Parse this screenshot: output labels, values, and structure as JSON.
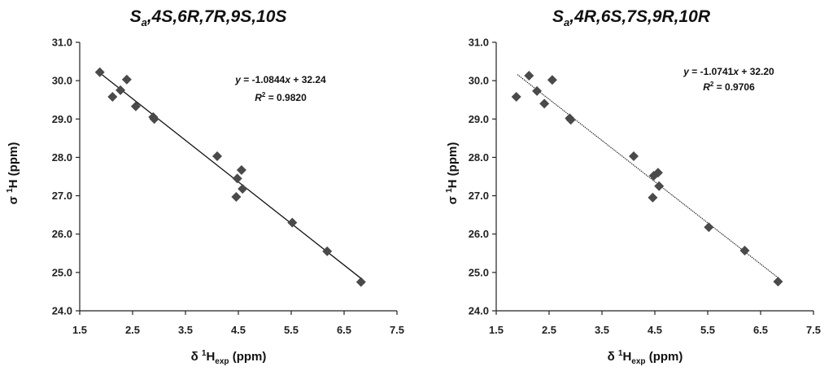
{
  "chart_data": [
    {
      "type": "scatter",
      "title": {
        "s": "S",
        "sub": "a",
        "rest": ",4S,6R,7R,9S,10S"
      },
      "xlabel": {
        "pre": "δ ",
        "sup": "1",
        "main": "H",
        "sub": "exp",
        "post": " (ppm)"
      },
      "ylabel": {
        "pre": "σ ",
        "sup": "1",
        "post": "H (ppm)"
      },
      "xlim": [
        1.5,
        7.5
      ],
      "ylim": [
        24.0,
        31.0
      ],
      "xticks": [
        "1.5",
        "2.5",
        "3.5",
        "4.5",
        "5.5",
        "6.5",
        "7.5"
      ],
      "yticks": [
        "24.0",
        "25.0",
        "26.0",
        "27.0",
        "28.0",
        "29.0",
        "30.0",
        "31.0"
      ],
      "grid": false,
      "points": [
        [
          1.88,
          30.22
        ],
        [
          2.12,
          29.58
        ],
        [
          2.27,
          29.75
        ],
        [
          2.39,
          30.03
        ],
        [
          2.56,
          29.33
        ],
        [
          2.89,
          29.05
        ],
        [
          2.91,
          29.0
        ],
        [
          4.1,
          28.03
        ],
        [
          4.48,
          27.45
        ],
        [
          4.46,
          26.97
        ],
        [
          4.56,
          27.67
        ],
        [
          4.58,
          27.18
        ],
        [
          5.52,
          26.3
        ],
        [
          6.18,
          25.55
        ],
        [
          6.82,
          24.75
        ]
      ],
      "fit": {
        "slope": -1.0844,
        "intercept": 32.24,
        "x_range": [
          1.9,
          6.82
        ]
      },
      "equation": {
        "y_part": "y",
        "eq_part": " = -1.0844",
        "x_part": "x",
        "tail": " + 32.24"
      },
      "r2": {
        "r": "R",
        "sup": "2",
        "value": " = 0.9820"
      }
    },
    {
      "type": "scatter",
      "title": {
        "s": "S",
        "sub": "a",
        "rest": ",4R,6S,7S,9R,10R"
      },
      "xlabel": {
        "pre": "δ ",
        "sup": "1",
        "main": "H",
        "sub": "exp",
        "post": " (ppm)"
      },
      "ylabel": {
        "pre": "σ ",
        "sup": "1",
        "post": "H (ppm)"
      },
      "xlim": [
        1.5,
        7.5
      ],
      "ylim": [
        24.0,
        31.0
      ],
      "xticks": [
        "1.5",
        "2.5",
        "3.5",
        "4.5",
        "5.5",
        "6.5",
        "7.5"
      ],
      "yticks": [
        "24.0",
        "25.0",
        "26.0",
        "27.0",
        "28.0",
        "29.0",
        "30.0",
        "31.0"
      ],
      "grid": false,
      "points": [
        [
          1.88,
          29.58
        ],
        [
          2.12,
          30.13
        ],
        [
          2.27,
          29.73
        ],
        [
          2.41,
          29.4
        ],
        [
          2.56,
          30.02
        ],
        [
          2.89,
          29.02
        ],
        [
          2.91,
          28.98
        ],
        [
          4.1,
          28.03
        ],
        [
          4.46,
          26.95
        ],
        [
          4.48,
          27.52
        ],
        [
          4.56,
          27.6
        ],
        [
          4.58,
          27.25
        ],
        [
          5.52,
          26.18
        ],
        [
          6.2,
          25.57
        ],
        [
          6.83,
          24.76
        ]
      ],
      "fit": {
        "slope": -1.0741,
        "intercept": 32.2,
        "x_range": [
          1.9,
          6.83
        ]
      },
      "equation": {
        "y_part": "y",
        "eq_part": " = -1.0741",
        "x_part": "x",
        "tail": " + 32.20"
      },
      "r2": {
        "r": "R",
        "sup": "2",
        "value": " = 0.9706"
      }
    }
  ]
}
